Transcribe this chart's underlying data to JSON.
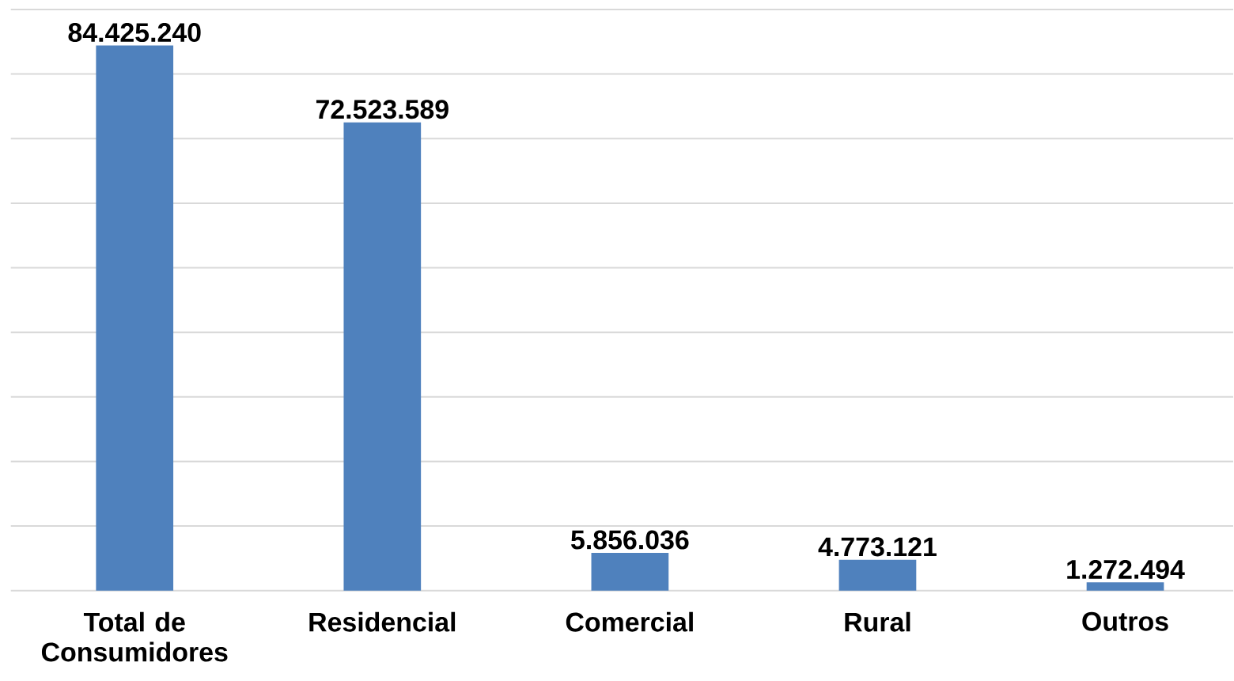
{
  "chart_data": {
    "type": "bar",
    "categories": [
      "Total de Consumidores",
      "Residencial",
      "Comercial",
      "Rural",
      "Outros"
    ],
    "values": [
      84425240,
      72523589,
      5856036,
      4773121,
      1272494
    ],
    "value_labels": [
      "84.425.240",
      "72.523.589",
      "5.856.036",
      "4.773.121",
      "1.272.494"
    ],
    "color": "#4f81bd",
    "ylim": [
      0,
      90000000
    ],
    "yticks": [
      {
        "value": 0,
        "label": null
      },
      {
        "value": 10000000,
        "label": null
      },
      {
        "value": 20000000,
        "label": null
      },
      {
        "value": 30000000,
        "label": null
      },
      {
        "value": 40000000,
        "label": null
      },
      {
        "value": 50000000,
        "label": null
      },
      {
        "value": 60000000,
        "label": null
      },
      {
        "value": 70000000,
        "label": null
      },
      {
        "value": 80000000,
        "label": null
      },
      {
        "value": 90000000,
        "label": null
      }
    ],
    "grid": "y",
    "tick_labels": "x"
  }
}
